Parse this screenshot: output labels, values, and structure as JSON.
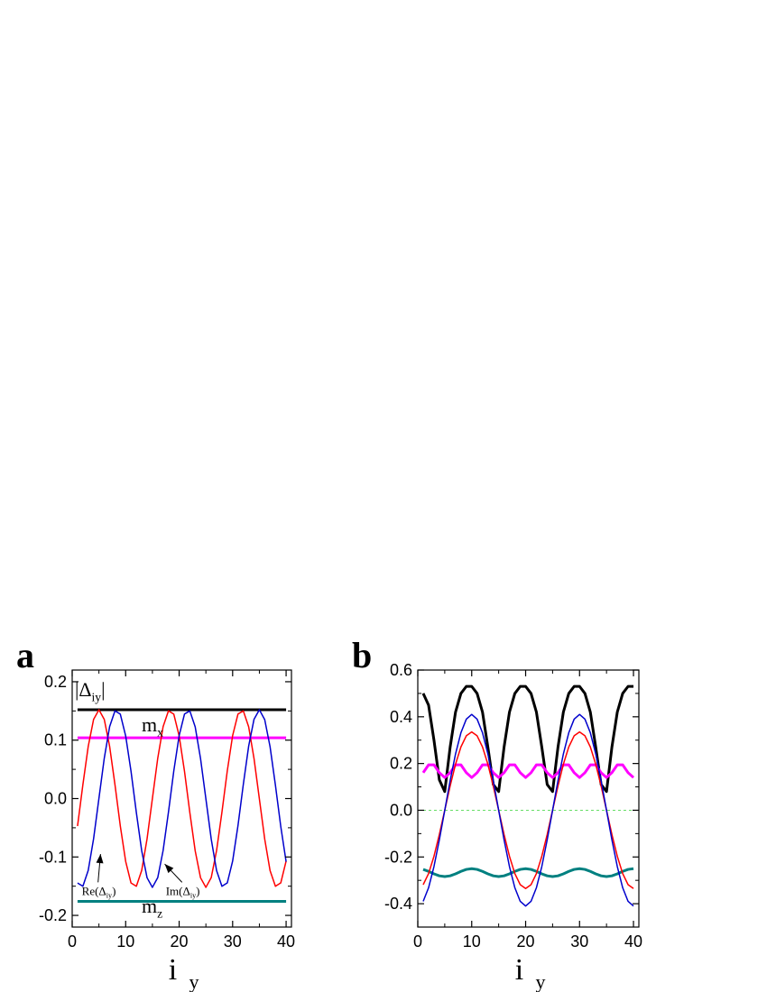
{
  "chart_data": [
    {
      "panel_label": "a",
      "type": "line",
      "xlabel": "i",
      "xlabel_sub": "y",
      "xlim": [
        0,
        41
      ],
      "ylim": [
        -0.22,
        0.22
      ],
      "xticks": [
        0,
        10,
        20,
        30,
        40
      ],
      "xtick_labels": [
        "0",
        "10",
        "20",
        "30",
        "40"
      ],
      "yticks": [
        -0.2,
        -0.1,
        0.0,
        0.1,
        0.2
      ],
      "ytick_labels": [
        "-0.2",
        "-0.1",
        "0.0",
        "0.1",
        "0.2"
      ],
      "grid": false,
      "series": [
        {
          "key": "abs_delta",
          "color": "#000000",
          "width": 3,
          "type": "constant",
          "value": 0.152,
          "x_range": [
            1,
            40
          ]
        },
        {
          "key": "mx",
          "color": "#ff00ff",
          "width": 3,
          "type": "constant",
          "value": 0.104,
          "x_range": [
            1,
            40
          ]
        },
        {
          "key": "mz",
          "color": "#008080",
          "width": 3,
          "type": "constant",
          "value": -0.176,
          "x_range": [
            1,
            40
          ]
        },
        {
          "key": "re_delta",
          "color": "#ff0000",
          "width": 1.5,
          "type": "sine",
          "amplitude": 0.152,
          "period": 13.33,
          "peak_x": 5.0,
          "x_range": [
            1,
            40
          ]
        },
        {
          "key": "im_delta",
          "color": "#0000cc",
          "width": 1.5,
          "type": "sine",
          "amplitude": 0.152,
          "period": 13.33,
          "peak_x": 8.33,
          "x_range": [
            1,
            40
          ]
        }
      ],
      "annotations": [
        {
          "key": "abs_label",
          "pre": "|Δ",
          "sub": "iy",
          "post": "|",
          "x": 0.5,
          "y": 0.175
        },
        {
          "key": "mx_label",
          "text": "m",
          "sub": "x",
          "x": 13.0,
          "y": 0.115
        },
        {
          "key": "mz_label",
          "text": "m",
          "sub": "z",
          "x": 13.0,
          "y": -0.195
        },
        {
          "key": "re_label",
          "pre": "Re(Δ",
          "sub": "iy",
          "post": ")",
          "x": 1.8,
          "y": -0.165,
          "arrow_to": [
            5.3,
            -0.095
          ]
        },
        {
          "key": "im_label",
          "pre": "Im(Δ",
          "sub": "iy",
          "post": ")",
          "x": 17.5,
          "y": -0.165,
          "arrow_to": [
            17.3,
            -0.112
          ]
        }
      ]
    },
    {
      "panel_label": "b",
      "type": "line",
      "xlabel": "i",
      "xlabel_sub": "y",
      "xlim": [
        0,
        41
      ],
      "ylim": [
        -0.5,
        0.6
      ],
      "xticks": [
        0,
        10,
        20,
        30,
        40
      ],
      "xtick_labels": [
        "0",
        "10",
        "20",
        "30",
        "40"
      ],
      "yticks": [
        -0.4,
        -0.2,
        0.0,
        0.2,
        0.4,
        0.6
      ],
      "ytick_labels": [
        "-0.4",
        "-0.2",
        "0.0",
        "0.2",
        "0.4",
        "0.6"
      ],
      "grid": false,
      "series": [
        {
          "key": "zero_line",
          "color": "#66dd66",
          "width": 1,
          "dashed": true,
          "type": "constant",
          "value": 0.0,
          "x_range": [
            1,
            40
          ]
        },
        {
          "key": "abs_delta",
          "color": "#000000",
          "width": 3,
          "type": "points",
          "x": [
            1,
            2,
            3,
            4,
            5,
            6,
            7,
            8,
            9,
            10,
            11,
            12,
            13,
            14,
            15,
            16,
            17,
            18,
            19,
            20,
            21,
            22,
            23,
            24,
            25,
            26,
            27,
            28,
            29,
            30,
            31,
            32,
            33,
            34,
            35,
            36,
            37,
            38,
            39,
            40
          ],
          "y": [
            0.5,
            0.45,
            0.3,
            0.13,
            0.08,
            0.27,
            0.42,
            0.5,
            0.53,
            0.53,
            0.5,
            0.42,
            0.27,
            0.11,
            0.08,
            0.27,
            0.42,
            0.5,
            0.53,
            0.53,
            0.5,
            0.42,
            0.27,
            0.11,
            0.08,
            0.27,
            0.42,
            0.5,
            0.53,
            0.53,
            0.5,
            0.42,
            0.27,
            0.11,
            0.08,
            0.27,
            0.42,
            0.5,
            0.53,
            0.53
          ]
        },
        {
          "key": "mx",
          "color": "#ff00ff",
          "width": 3,
          "type": "cosine",
          "offset": 0.17,
          "amplitude": 0.03,
          "period": 5.0,
          "peak_x": 2.5,
          "x_range": [
            1,
            40
          ]
        },
        {
          "key": "mz",
          "color": "#008080",
          "width": 3,
          "type": "cosine",
          "offset": -0.267,
          "amplitude": 0.017,
          "period": 10.0,
          "peak_x": 0.0,
          "x_range": [
            1,
            40
          ]
        },
        {
          "key": "re_delta",
          "color": "#ff0000",
          "width": 1.5,
          "type": "cosine",
          "offset": 0.0,
          "amplitude": 0.335,
          "period": 20.0,
          "peak_x": 10.0,
          "x_range": [
            1,
            40
          ]
        },
        {
          "key": "im_delta",
          "color": "#0000cc",
          "width": 1.5,
          "type": "cosine",
          "offset": 0.0,
          "amplitude": 0.41,
          "period": 20.0,
          "peak_x": 10.0,
          "x_range": [
            1,
            40
          ]
        }
      ],
      "annotations": []
    }
  ]
}
